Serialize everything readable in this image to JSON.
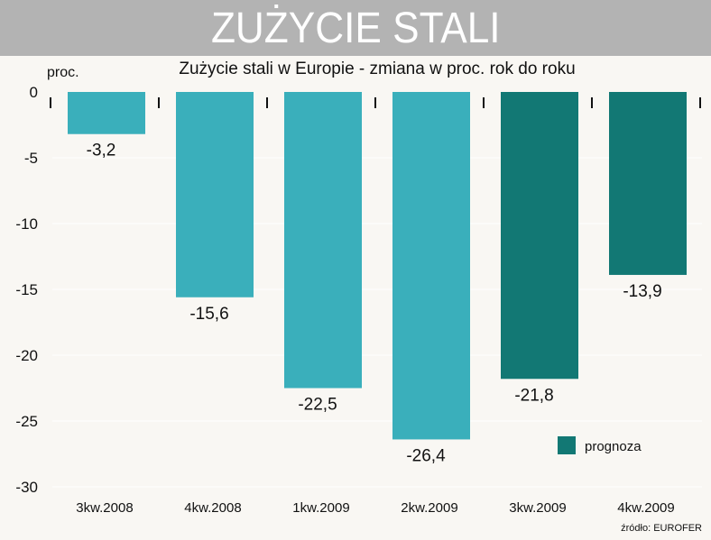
{
  "header": {
    "title": "ZUŻYCIE STALI"
  },
  "chart_data": {
    "type": "bar",
    "subtitle": "Zużycie stali w Europie - zmiana w proc. rok do roku",
    "ylabel": "proc.",
    "categories": [
      "3kw.2008",
      "4kw.2008",
      "1kw.2009",
      "2kw.2009",
      "3kw.2009",
      "4kw.2009"
    ],
    "values": [
      -3.2,
      -15.6,
      -22.5,
      -26.4,
      -21.8,
      -13.9
    ],
    "value_labels": [
      "-3,2",
      "-15,6",
      "-22,5",
      "-26,4",
      "-21,8",
      "-13,9"
    ],
    "forecast": [
      false,
      false,
      false,
      false,
      true,
      true
    ],
    "ylim": [
      -30,
      0
    ],
    "yticks": [
      0,
      -5,
      -10,
      -15,
      -20,
      -25,
      -30
    ],
    "ytick_labels": [
      "0",
      "-5",
      "-10",
      "-15",
      "-20",
      "-25",
      "-30"
    ],
    "grid": true,
    "legend": {
      "label": "prognoza",
      "placement": "bottom-right"
    },
    "source": "źródło: EUROFER",
    "colors": {
      "actual": "#3aafbb",
      "forecast": "#127874"
    }
  }
}
